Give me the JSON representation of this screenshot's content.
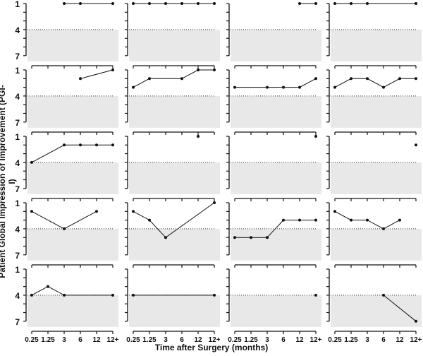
{
  "chart_data": {
    "type": "line",
    "title": "",
    "xlabel": "Time after Surgery (months)",
    "ylabel": "Patient Global Impression of Improvement (PGI-I)",
    "categories": [
      "0.25",
      "1.25",
      "3",
      "6",
      "12",
      "12+"
    ],
    "ylim": [
      1,
      7
    ],
    "y_inverted": true,
    "yticks_labeled": [
      "1",
      "4",
      "7"
    ],
    "reference_line": 4,
    "shaded_region": [
      4,
      7
    ],
    "layout_grid": "5 rows x 4 columns",
    "colors": {
      "line": "#111111",
      "shade": "#e8e8e8",
      "reference": "#333333"
    },
    "panels": [
      {
        "values": [
          null,
          null,
          1,
          1,
          null,
          1
        ]
      },
      {
        "values": [
          1,
          1,
          1,
          1,
          1,
          1
        ]
      },
      {
        "values": [
          null,
          null,
          null,
          null,
          1,
          1
        ]
      },
      {
        "values": [
          1,
          1,
          1,
          null,
          null,
          1
        ]
      },
      {
        "values": [
          null,
          null,
          null,
          2,
          null,
          1
        ]
      },
      {
        "values": [
          3,
          2,
          null,
          2,
          1,
          1
        ]
      },
      {
        "values": [
          3,
          null,
          3,
          3,
          3,
          2
        ]
      },
      {
        "values": [
          3,
          2,
          2,
          3,
          2,
          2
        ]
      },
      {
        "values": [
          4,
          null,
          2,
          2,
          2,
          2
        ]
      },
      {
        "values": [
          null,
          null,
          null,
          null,
          1,
          null
        ]
      },
      {
        "values": [
          null,
          null,
          null,
          null,
          null,
          1
        ]
      },
      {
        "values": [
          null,
          null,
          null,
          null,
          null,
          2
        ]
      },
      {
        "values": [
          2,
          null,
          4,
          null,
          2,
          null
        ]
      },
      {
        "values": [
          2,
          3,
          5,
          null,
          null,
          1
        ]
      },
      {
        "values": [
          5,
          5,
          5,
          3,
          3,
          3
        ]
      },
      {
        "values": [
          2,
          3,
          3,
          4,
          3,
          null
        ]
      },
      {
        "values": [
          4,
          3,
          4,
          null,
          null,
          4
        ]
      },
      {
        "values": [
          4,
          null,
          null,
          null,
          null,
          4
        ]
      },
      {
        "values": [
          null,
          null,
          null,
          null,
          null,
          4
        ]
      },
      {
        "values": [
          null,
          null,
          null,
          4,
          null,
          7
        ]
      }
    ]
  }
}
